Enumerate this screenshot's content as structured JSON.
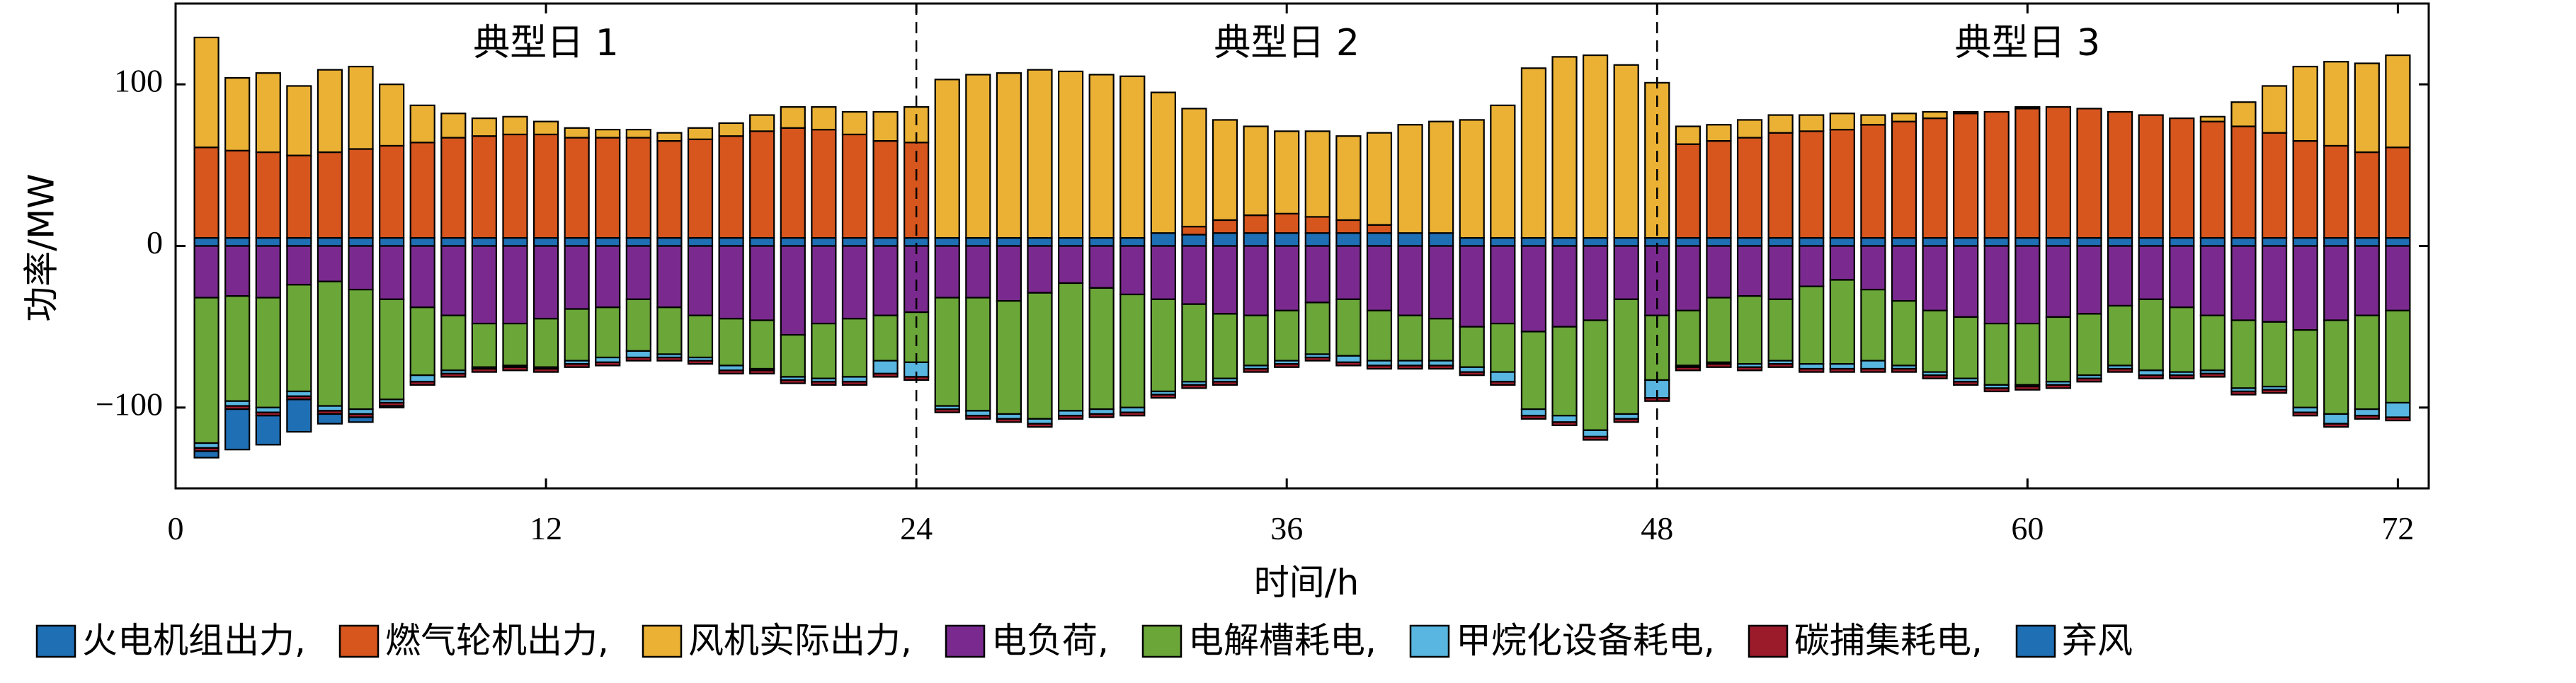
{
  "chart_data": {
    "type": "bar",
    "stacked": true,
    "xlabel": "时间/h",
    "ylabel": "功率/MW",
    "xlim": [
      0,
      73
    ],
    "ylim": [
      -150,
      150
    ],
    "xticks": [
      0,
      12,
      24,
      36,
      48,
      60,
      72
    ],
    "yticks": [
      -100,
      0,
      100
    ],
    "ytick_labels": [
      "−100",
      "0",
      "100"
    ],
    "grid": false,
    "legend_position": "bottom",
    "dividers": [
      24,
      48
    ],
    "day_labels": [
      {
        "text": "典型日 1",
        "x": 12
      },
      {
        "text": "典型日 2",
        "x": 36
      },
      {
        "text": "典型日 3",
        "x": 60
      }
    ],
    "x": [
      1,
      2,
      3,
      4,
      5,
      6,
      7,
      8,
      9,
      10,
      11,
      12,
      13,
      14,
      15,
      16,
      17,
      18,
      19,
      20,
      21,
      22,
      23,
      24,
      25,
      26,
      27,
      28,
      29,
      30,
      31,
      32,
      33,
      34,
      35,
      36,
      37,
      38,
      39,
      40,
      41,
      42,
      43,
      44,
      45,
      46,
      47,
      48,
      49,
      50,
      51,
      52,
      53,
      54,
      55,
      56,
      57,
      58,
      59,
      60,
      61,
      62,
      63,
      64,
      65,
      66,
      67,
      68,
      69,
      70,
      71,
      72
    ],
    "series": [
      {
        "name": "火电机组出力",
        "color": "#1f6fb5",
        "sign": "positive",
        "values": [
          5,
          5,
          5,
          5,
          5,
          5,
          5,
          5,
          5,
          5,
          5,
          5,
          5,
          5,
          5,
          5,
          5,
          5,
          5,
          5,
          5,
          5,
          5,
          5,
          5,
          5,
          5,
          5,
          5,
          5,
          5,
          8,
          7,
          8,
          8,
          8,
          8,
          8,
          8,
          8,
          8,
          5,
          5,
          5,
          5,
          5,
          5,
          5,
          5,
          5,
          5,
          5,
          5,
          5,
          5,
          5,
          5,
          5,
          5,
          5,
          5,
          5,
          5,
          5,
          5,
          5,
          5,
          5,
          5,
          5,
          5,
          5
        ]
      },
      {
        "name": "燃气轮机出力",
        "color": "#d6561e",
        "sign": "positive",
        "values": [
          56,
          54,
          53,
          51,
          53,
          55,
          57,
          59,
          62,
          63,
          64,
          64,
          62,
          62,
          62,
          60,
          61,
          63,
          66,
          68,
          67,
          64,
          60,
          59,
          0,
          0,
          0,
          0,
          0,
          0,
          0,
          0,
          5,
          8,
          11,
          12,
          10,
          8,
          5,
          0,
          0,
          0,
          0,
          0,
          0,
          0,
          0,
          0,
          58,
          60,
          62,
          65,
          66,
          67,
          70,
          72,
          74,
          77,
          78,
          80,
          81,
          80,
          78,
          76,
          74,
          72,
          69,
          65,
          60,
          57,
          53,
          56
        ]
      },
      {
        "name": "风机实际出力",
        "color": "#ebb134",
        "sign": "positive",
        "values": [
          68,
          45,
          49,
          43,
          51,
          51,
          38,
          23,
          15,
          11,
          11,
          8,
          6,
          5,
          5,
          5,
          7,
          8,
          10,
          13,
          14,
          14,
          18,
          22,
          98,
          101,
          102,
          104,
          103,
          101,
          100,
          87,
          73,
          62,
          55,
          51,
          53,
          52,
          57,
          67,
          69,
          73,
          82,
          105,
          112,
          113,
          107,
          96,
          11,
          10,
          11,
          11,
          10,
          10,
          6,
          5,
          4,
          1,
          0,
          1,
          0,
          0,
          0,
          0,
          0,
          3,
          15,
          29,
          46,
          52,
          55,
          57
        ]
      },
      {
        "name": "电负荷",
        "color": "#7a2a8e",
        "sign": "negative",
        "values": [
          -32,
          -31,
          -32,
          -24,
          -22,
          -27,
          -33,
          -38,
          -43,
          -48,
          -48,
          -45,
          -39,
          -38,
          -33,
          -38,
          -43,
          -45,
          -46,
          -55,
          -48,
          -45,
          -43,
          -41,
          -32,
          -32,
          -34,
          -29,
          -23,
          -26,
          -30,
          -33,
          -36,
          -42,
          -43,
          -40,
          -35,
          -33,
          -40,
          -43,
          -45,
          -50,
          -48,
          -53,
          -50,
          -46,
          -33,
          -43,
          -40,
          -32,
          -31,
          -33,
          -25,
          -21,
          -27,
          -34,
          -40,
          -44,
          -48,
          -48,
          -44,
          -42,
          -37,
          -33,
          -38,
          -43,
          -46,
          -47,
          -52,
          -46,
          -43,
          -40
        ]
      },
      {
        "name": "电解槽耗电",
        "color": "#6aa638",
        "sign": "negative",
        "values": [
          -90,
          -65,
          -68,
          -66,
          -77,
          -74,
          -62,
          -42,
          -34,
          -27,
          -26,
          -30,
          -32,
          -31,
          -32,
          -29,
          -26,
          -29,
          -30,
          -26,
          -34,
          -36,
          -28,
          -31,
          -67,
          -70,
          -70,
          -78,
          -79,
          -75,
          -70,
          -57,
          -48,
          -40,
          -31,
          -31,
          -32,
          -35,
          -31,
          -28,
          -26,
          -25,
          -30,
          -48,
          -55,
          -68,
          -71,
          -40,
          -34,
          -40,
          -42,
          -38,
          -48,
          -52,
          -44,
          -40,
          -38,
          -38,
          -38,
          -38,
          -40,
          -38,
          -37,
          -44,
          -40,
          -34,
          -42,
          -40,
          -48,
          -58,
          -58,
          -57
        ]
      },
      {
        "name": "甲烷化设备耗电",
        "color": "#58b6e0",
        "sign": "negative",
        "values": [
          -3,
          -3,
          -3,
          -3,
          -3,
          -3,
          -2,
          -4,
          -2,
          -1,
          -1,
          -1,
          -2,
          -3,
          -4,
          -2,
          -2,
          -3,
          -1,
          -2,
          -2,
          -3,
          -8,
          -9,
          -2,
          -3,
          -3,
          -3,
          -3,
          -3,
          -3,
          -2,
          -2,
          -2,
          -2,
          -2,
          -2,
          -4,
          -3,
          -3,
          -3,
          -3,
          -6,
          -4,
          -4,
          -4,
          -3,
          -11,
          -1,
          -1,
          -2,
          -2,
          -3,
          -3,
          -5,
          -2,
          -2,
          -2,
          -2,
          -1,
          -2,
          -2,
          -2,
          -3,
          -2,
          -2,
          -2,
          -2,
          -3,
          -6,
          -4,
          -9
        ]
      },
      {
        "name": "碳捕集耗电",
        "color": "#9b1b2b",
        "sign": "negative",
        "values": [
          -2,
          -2,
          -2,
          -2,
          -2,
          -2,
          -2,
          -2,
          -2,
          -2,
          -2,
          -2,
          -2,
          -2,
          -2,
          -2,
          -2,
          -2,
          -2,
          -2,
          -2,
          -2,
          -2,
          -2,
          -2,
          -2,
          -2,
          -2,
          -2,
          -2,
          -2,
          -2,
          -2,
          -2,
          -2,
          -2,
          -2,
          -2,
          -2,
          -2,
          -2,
          -2,
          -2,
          -2,
          -2,
          -2,
          -2,
          -2,
          -2,
          -2,
          -2,
          -2,
          -2,
          -2,
          -2,
          -2,
          -2,
          -2,
          -2,
          -2,
          -2,
          -2,
          -2,
          -2,
          -2,
          -2,
          -2,
          -2,
          -2,
          -2,
          -2,
          -2
        ]
      },
      {
        "name": "弃风",
        "color": "#1f6fb5",
        "sign": "negative",
        "values": [
          -4,
          -25,
          -18,
          -20,
          -6,
          -3,
          -1,
          0,
          0,
          0,
          0,
          0,
          0,
          0,
          0,
          0,
          0,
          0,
          0,
          0,
          0,
          0,
          0,
          0,
          0,
          0,
          0,
          0,
          0,
          0,
          0,
          0,
          0,
          0,
          0,
          0,
          0,
          0,
          0,
          0,
          0,
          0,
          0,
          0,
          0,
          0,
          0,
          0,
          0,
          0,
          0,
          0,
          0,
          0,
          0,
          0,
          0,
          0,
          0,
          0,
          0,
          0,
          0,
          0,
          0,
          0,
          0,
          0,
          0,
          0,
          0,
          0
        ]
      }
    ]
  }
}
